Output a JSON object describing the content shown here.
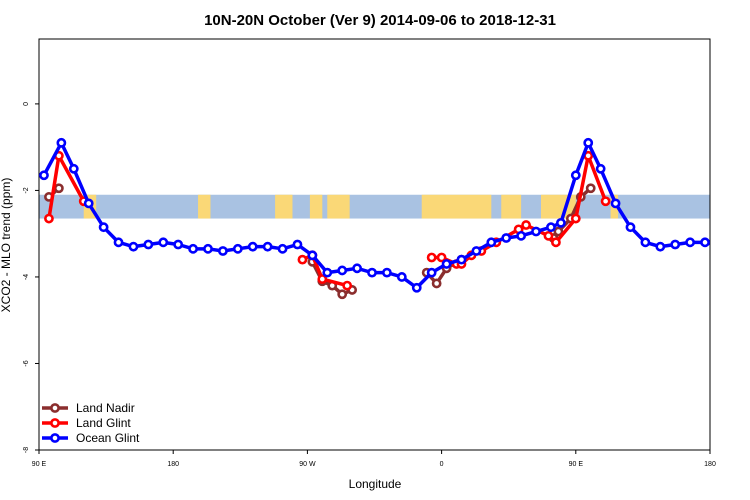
{
  "chart_data": {
    "type": "line",
    "title": "10N-20N October (Ver 9)   2014-09-06 to 2018-12-31",
    "xlabel": "Longitude",
    "ylabel": "XCO2 - MLO trend (ppm)",
    "xlim": [
      -90,
      180
    ],
    "ylim": [
      -8,
      1.5
    ],
    "x_ticks": [
      {
        "value": -90,
        "label": "90 E"
      },
      {
        "value": -36,
        "label": "180"
      },
      {
        "value": 18,
        "label": "90 W"
      },
      {
        "value": 72,
        "label": "0"
      },
      {
        "value": 126,
        "label": "90 E"
      },
      {
        "value": 180,
        "label": "180"
      }
    ],
    "y_ticks": [
      {
        "value": 0,
        "label": "0"
      },
      {
        "value": -2,
        "label": "-2"
      },
      {
        "value": -4,
        "label": "-4"
      },
      {
        "value": -6,
        "label": "-6"
      },
      {
        "value": -8,
        "label": "-8"
      }
    ],
    "legend_position": "bottom-left",
    "map_band": {
      "ymin": -2.65,
      "ymax": -2.1,
      "ocean_color": "#a9c2e2",
      "land_color": "#fad877"
    },
    "series": [
      {
        "name": "Land Nadir",
        "color": "#8b2e2e",
        "points": [
          [
            -86,
            -2.15
          ],
          [
            -82,
            -1.95
          ],
          [
            20,
            -3.65
          ],
          [
            24,
            -4.1
          ],
          [
            28,
            -4.2
          ],
          [
            32,
            -4.4
          ],
          [
            36,
            -4.3
          ],
          [
            66,
            -3.9
          ],
          [
            70,
            -4.15
          ],
          [
            74,
            -3.8
          ],
          [
            80,
            -3.6
          ],
          [
            117,
            -3.1
          ],
          [
            119,
            -2.95
          ],
          [
            124,
            -2.65
          ],
          [
            128,
            -2.15
          ],
          [
            132,
            -1.95
          ]
        ]
      },
      {
        "name": "Land Glint",
        "color": "#ff0000",
        "points": [
          [
            -86,
            -2.65
          ],
          [
            -82,
            -1.2
          ],
          [
            -72,
            -2.25
          ],
          [
            16,
            -3.6
          ],
          [
            20,
            -3.5
          ],
          [
            24,
            -4.05
          ],
          [
            34,
            -4.2
          ],
          [
            68,
            -3.55
          ],
          [
            72,
            -3.55
          ],
          [
            78,
            -3.7
          ],
          [
            80,
            -3.7
          ],
          [
            84,
            -3.5
          ],
          [
            88,
            -3.4
          ],
          [
            94,
            -3.2
          ],
          [
            103,
            -2.9
          ],
          [
            106,
            -2.8
          ],
          [
            115,
            -3.05
          ],
          [
            118,
            -3.2
          ],
          [
            126,
            -2.65
          ],
          [
            131,
            -1.2
          ],
          [
            138,
            -2.25
          ]
        ]
      },
      {
        "name": "Ocean Glint",
        "color": "#0000ff",
        "points": [
          [
            -88,
            -1.65
          ],
          [
            -81,
            -0.9
          ],
          [
            -76,
            -1.5
          ],
          [
            -70,
            -2.3
          ],
          [
            -64,
            -2.85
          ],
          [
            -58,
            -3.2
          ],
          [
            -52,
            -3.3
          ],
          [
            -46,
            -3.25
          ],
          [
            -40,
            -3.2
          ],
          [
            -34,
            -3.25
          ],
          [
            -28,
            -3.35
          ],
          [
            -22,
            -3.35
          ],
          [
            -16,
            -3.4
          ],
          [
            -10,
            -3.35
          ],
          [
            -4,
            -3.3
          ],
          [
            2,
            -3.3
          ],
          [
            8,
            -3.35
          ],
          [
            14,
            -3.25
          ],
          [
            20,
            -3.5
          ],
          [
            26,
            -3.9
          ],
          [
            32,
            -3.85
          ],
          [
            38,
            -3.8
          ],
          [
            44,
            -3.9
          ],
          [
            50,
            -3.9
          ],
          [
            56,
            -4.0
          ],
          [
            62,
            -4.25
          ],
          [
            68,
            -3.9
          ],
          [
            74,
            -3.7
          ],
          [
            80,
            -3.6
          ],
          [
            86,
            -3.4
          ],
          [
            92,
            -3.2
          ],
          [
            98,
            -3.1
          ],
          [
            104,
            -3.05
          ],
          [
            110,
            -2.95
          ],
          [
            116,
            -2.85
          ],
          [
            120,
            -2.75
          ],
          [
            126,
            -1.65
          ],
          [
            131,
            -0.9
          ],
          [
            136,
            -1.5
          ],
          [
            142,
            -2.3
          ],
          [
            148,
            -2.85
          ],
          [
            154,
            -3.2
          ],
          [
            160,
            -3.3
          ],
          [
            166,
            -3.25
          ],
          [
            172,
            -3.2
          ],
          [
            178,
            -3.2
          ]
        ]
      }
    ]
  }
}
